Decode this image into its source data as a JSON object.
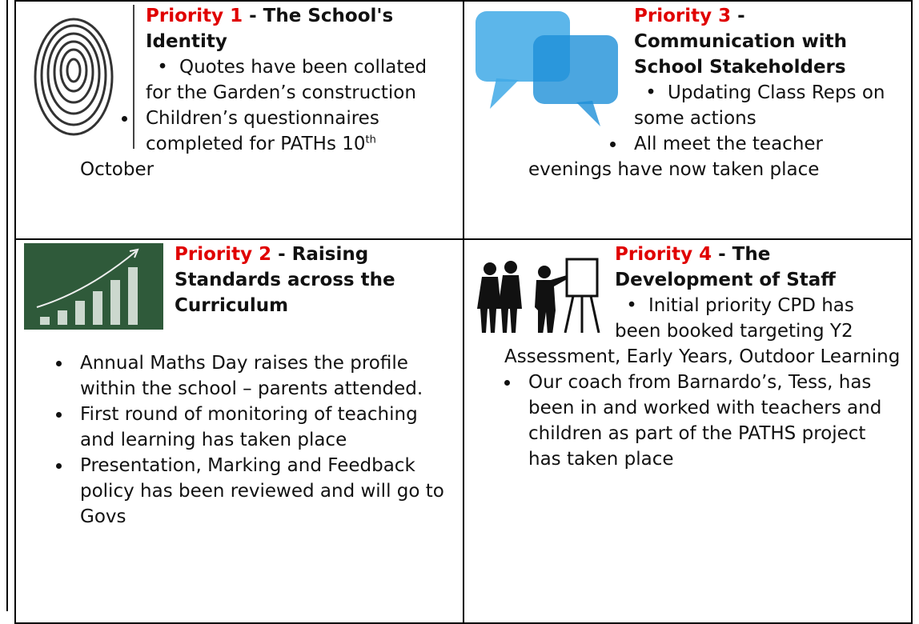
{
  "table": {
    "rows": [
      [
        {
          "priority": "Priority 1",
          "title": " - The School's Identity",
          "first_bullet": "Quotes have been collated for the Garden’s construction",
          "bullets": [
            {
              "text": "Children’s questionnaires completed for PATHs 10",
              "sup": "th",
              "rest": " October"
            }
          ]
        },
        {
          "priority": "Priority 3",
          "title": " - Communication with School Stakeholders",
          "first_bullet": "Updating Class Reps on some actions",
          "bullets": [
            "All meet the teacher evenings have now taken place"
          ]
        }
      ],
      [
        {
          "priority": "Priority 2",
          "title": " - Raising Standards across the Curriculum",
          "bullets": [
            "Annual Maths Day raises the profile within the school – parents attended.",
            "First round of monitoring of teaching and learning has taken place",
            "Presentation, Marking and Feedback policy has been reviewed and will go to Govs"
          ]
        },
        {
          "priority": "Priority 4",
          "title": " - The Development of Staff",
          "first_bullet": "Initial priority CPD has been booked targeting Y2 Assessment, Early Years, Outdoor Learning",
          "bullets": [
            "Our coach from Barnardo’s, Tess, has been in and worked with teachers and children as part of the PATHS project has taken place"
          ]
        }
      ]
    ]
  }
}
